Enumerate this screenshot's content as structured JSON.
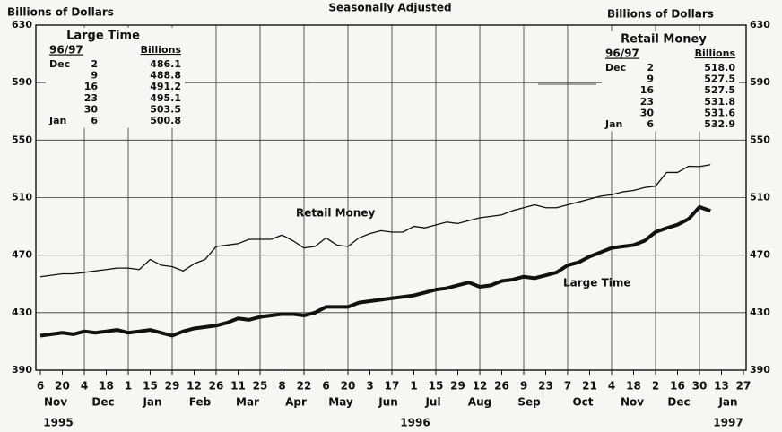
{
  "chart_data": {
    "type": "line",
    "title": "Seasonally Adjusted",
    "y_label_left": "Billions of Dollars",
    "y_label_right": "Billions of Dollars",
    "categories": [
      "6",
      null,
      "20",
      null,
      "4",
      null,
      "18",
      null,
      "1",
      null,
      "15",
      null,
      "29",
      null,
      "12",
      null,
      "26",
      null,
      "11",
      null,
      "25",
      null,
      "8",
      null,
      "22",
      null,
      "6",
      null,
      "20",
      null,
      "3",
      null,
      "17",
      null,
      "1",
      null,
      "15",
      null,
      "29",
      null,
      "12",
      null,
      "26",
      null,
      "9",
      null,
      "23",
      null,
      "7",
      null,
      "21",
      null,
      "4",
      null,
      "18",
      null,
      "2",
      null,
      "16",
      null,
      "30",
      null,
      "13",
      null,
      "27"
    ],
    "months": [
      "Nov",
      "Dec",
      "Jan",
      "Feb",
      "Mar",
      "Apr",
      "May",
      "Jun",
      "Jul",
      "Aug",
      "Sep",
      "Oct",
      "Nov",
      "Dec",
      "Jan"
    ],
    "years": [
      "1995",
      "1996",
      "1997"
    ],
    "ylim": [
      390,
      630
    ],
    "yticks": [
      390,
      430,
      470,
      510,
      550,
      590,
      630
    ],
    "grid": true,
    "series": [
      {
        "name": "Retail Money",
        "color": "#111111",
        "values": [
          455,
          456,
          457,
          457,
          458,
          459,
          460,
          461,
          461,
          460,
          467,
          463,
          462,
          459,
          464,
          467,
          476,
          477,
          478,
          481,
          481,
          481,
          484,
          480,
          475,
          476,
          482,
          477,
          476,
          482,
          485,
          487,
          486,
          486,
          490,
          489,
          491,
          493,
          492,
          494,
          496,
          497,
          498,
          501,
          503,
          505,
          503,
          503,
          505,
          507,
          509,
          511,
          512,
          514,
          515,
          517,
          518.0,
          527.5,
          527.5,
          531.8,
          531.6,
          532.9,
          null,
          null,
          null
        ]
      },
      {
        "name": "Large Time",
        "color": "#111111",
        "values": [
          414,
          415,
          416,
          415,
          417,
          416,
          417,
          418,
          416,
          417,
          418,
          416,
          414,
          417,
          419,
          420,
          421,
          423,
          426,
          425,
          427,
          428,
          429,
          429,
          428,
          430,
          434,
          434,
          434,
          437,
          438,
          439,
          440,
          441,
          442,
          444,
          446,
          447,
          449,
          451,
          448,
          449,
          452,
          453,
          455,
          454,
          456,
          458,
          463,
          465,
          469,
          472,
          475,
          476,
          477,
          480,
          486.1,
          488.8,
          491.2,
          495.1,
          503.5,
          500.8,
          null,
          null,
          null
        ]
      }
    ],
    "tables": [
      {
        "title": "Large Time",
        "columns": [
          "96/97",
          "Billions"
        ],
        "rows": [
          [
            "Dec",
            "2",
            "486.1"
          ],
          [
            null,
            "9",
            "488.8"
          ],
          [
            null,
            "16",
            "491.2"
          ],
          [
            null,
            "23",
            "495.1"
          ],
          [
            null,
            "30",
            "503.5"
          ],
          [
            "Jan",
            "6",
            "500.8"
          ]
        ]
      },
      {
        "title": "Retail Money",
        "columns": [
          "96/97",
          "Billions"
        ],
        "rows": [
          [
            "Dec",
            "2",
            "518.0"
          ],
          [
            null,
            "9",
            "527.5"
          ],
          [
            null,
            "16",
            "527.5"
          ],
          [
            null,
            "23",
            "531.8"
          ],
          [
            null,
            "30",
            "531.6"
          ],
          [
            "Jan",
            "6",
            "532.9"
          ]
        ]
      }
    ]
  }
}
